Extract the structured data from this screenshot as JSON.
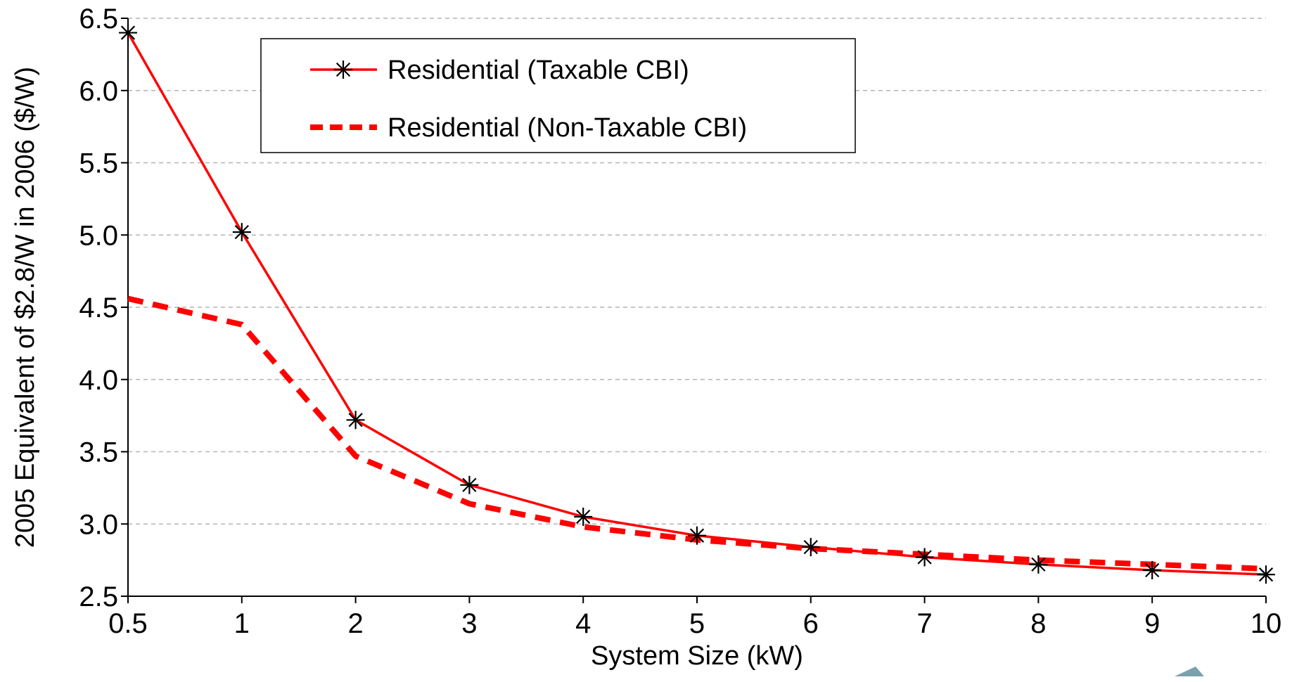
{
  "colors": {
    "series": "#ff0000",
    "marker": "#000000",
    "grid": "#b4b4b4",
    "axis": "#000000"
  },
  "chart_data": {
    "type": "line",
    "title": "",
    "xlabel": "System Size (kW)",
    "ylabel": "2005 Equivalent of $2.8/W in 2006 ($/W)",
    "categories": [
      "0.5",
      "1",
      "2",
      "3",
      "4",
      "5",
      "6",
      "7",
      "8",
      "9",
      "10"
    ],
    "ylim": [
      2.5,
      6.5
    ],
    "yticks": [
      "2.5",
      "3.0",
      "3.5",
      "4.0",
      "4.5",
      "5.0",
      "5.5",
      "6.0",
      "6.5"
    ],
    "grid": true,
    "legend_position": "top-left",
    "series": [
      {
        "name": "Residential (Taxable CBI)",
        "style": "solid",
        "marker": "asterisk",
        "values": [
          6.4,
          5.02,
          3.72,
          3.27,
          3.05,
          2.92,
          2.84,
          2.77,
          2.72,
          2.68,
          2.65
        ]
      },
      {
        "name": "Residential (Non-Taxable CBI)",
        "style": "dashed",
        "marker": "none",
        "values": [
          4.56,
          4.38,
          3.47,
          3.14,
          2.98,
          2.89,
          2.83,
          2.79,
          2.75,
          2.72,
          2.69
        ]
      }
    ]
  }
}
